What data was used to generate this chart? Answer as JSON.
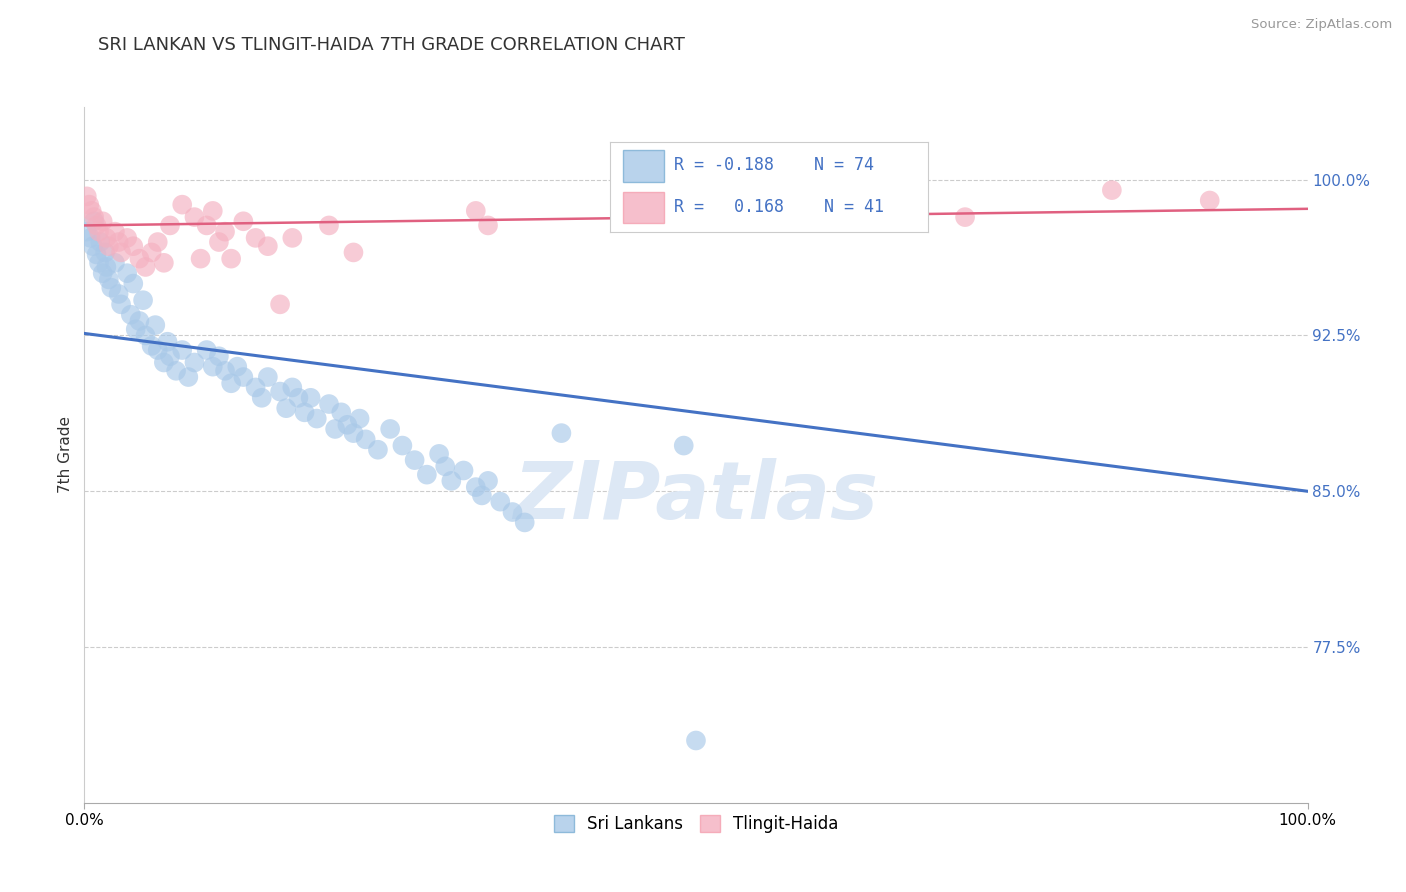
{
  "title": "SRI LANKAN VS TLINGIT-HAIDA 7TH GRADE CORRELATION CHART",
  "source": "Source: ZipAtlas.com",
  "ylabel": "7th Grade",
  "legend_label1": "Sri Lankans",
  "legend_label2": "Tlingit-Haida",
  "blue_color": "#a8c8e8",
  "pink_color": "#f4b0c0",
  "blue_line_color": "#4472c4",
  "pink_line_color": "#e06080",
  "blue_line_start_y": 0.926,
  "blue_line_end_y": 0.85,
  "pink_line_start_y": 0.978,
  "pink_line_end_y": 0.986,
  "yticks": [
    0.775,
    0.85,
    0.925,
    1.0
  ],
  "ytick_labels": [
    "77.5%",
    "85.0%",
    "92.5%",
    "100.0%"
  ],
  "y_min": 0.7,
  "y_max": 1.035,
  "x_min": 0.0,
  "x_max": 1.0,
  "blue_points": [
    [
      0.002,
      0.975
    ],
    [
      0.005,
      0.972
    ],
    [
      0.007,
      0.968
    ],
    [
      0.008,
      0.98
    ],
    [
      0.01,
      0.964
    ],
    [
      0.012,
      0.96
    ],
    [
      0.013,
      0.97
    ],
    [
      0.015,
      0.955
    ],
    [
      0.017,
      0.965
    ],
    [
      0.018,
      0.958
    ],
    [
      0.02,
      0.952
    ],
    [
      0.022,
      0.948
    ],
    [
      0.025,
      0.96
    ],
    [
      0.028,
      0.945
    ],
    [
      0.03,
      0.94
    ],
    [
      0.035,
      0.955
    ],
    [
      0.038,
      0.935
    ],
    [
      0.04,
      0.95
    ],
    [
      0.042,
      0.928
    ],
    [
      0.045,
      0.932
    ],
    [
      0.048,
      0.942
    ],
    [
      0.05,
      0.925
    ],
    [
      0.055,
      0.92
    ],
    [
      0.058,
      0.93
    ],
    [
      0.06,
      0.918
    ],
    [
      0.065,
      0.912
    ],
    [
      0.068,
      0.922
    ],
    [
      0.07,
      0.915
    ],
    [
      0.075,
      0.908
    ],
    [
      0.08,
      0.918
    ],
    [
      0.085,
      0.905
    ],
    [
      0.09,
      0.912
    ],
    [
      0.1,
      0.918
    ],
    [
      0.105,
      0.91
    ],
    [
      0.11,
      0.915
    ],
    [
      0.115,
      0.908
    ],
    [
      0.12,
      0.902
    ],
    [
      0.125,
      0.91
    ],
    [
      0.13,
      0.905
    ],
    [
      0.14,
      0.9
    ],
    [
      0.145,
      0.895
    ],
    [
      0.15,
      0.905
    ],
    [
      0.16,
      0.898
    ],
    [
      0.165,
      0.89
    ],
    [
      0.17,
      0.9
    ],
    [
      0.175,
      0.895
    ],
    [
      0.18,
      0.888
    ],
    [
      0.185,
      0.895
    ],
    [
      0.19,
      0.885
    ],
    [
      0.2,
      0.892
    ],
    [
      0.205,
      0.88
    ],
    [
      0.21,
      0.888
    ],
    [
      0.215,
      0.882
    ],
    [
      0.22,
      0.878
    ],
    [
      0.225,
      0.885
    ],
    [
      0.23,
      0.875
    ],
    [
      0.24,
      0.87
    ],
    [
      0.25,
      0.88
    ],
    [
      0.26,
      0.872
    ],
    [
      0.27,
      0.865
    ],
    [
      0.28,
      0.858
    ],
    [
      0.29,
      0.868
    ],
    [
      0.295,
      0.862
    ],
    [
      0.3,
      0.855
    ],
    [
      0.31,
      0.86
    ],
    [
      0.32,
      0.852
    ],
    [
      0.325,
      0.848
    ],
    [
      0.33,
      0.855
    ],
    [
      0.34,
      0.845
    ],
    [
      0.35,
      0.84
    ],
    [
      0.36,
      0.835
    ],
    [
      0.39,
      0.878
    ],
    [
      0.49,
      0.872
    ],
    [
      0.5,
      0.73
    ]
  ],
  "pink_points": [
    [
      0.002,
      0.992
    ],
    [
      0.004,
      0.988
    ],
    [
      0.006,
      0.985
    ],
    [
      0.008,
      0.982
    ],
    [
      0.01,
      0.978
    ],
    [
      0.012,
      0.975
    ],
    [
      0.015,
      0.98
    ],
    [
      0.018,
      0.972
    ],
    [
      0.02,
      0.968
    ],
    [
      0.025,
      0.975
    ],
    [
      0.028,
      0.97
    ],
    [
      0.03,
      0.965
    ],
    [
      0.035,
      0.972
    ],
    [
      0.04,
      0.968
    ],
    [
      0.045,
      0.962
    ],
    [
      0.05,
      0.958
    ],
    [
      0.055,
      0.965
    ],
    [
      0.06,
      0.97
    ],
    [
      0.065,
      0.96
    ],
    [
      0.07,
      0.978
    ],
    [
      0.08,
      0.988
    ],
    [
      0.09,
      0.982
    ],
    [
      0.095,
      0.962
    ],
    [
      0.1,
      0.978
    ],
    [
      0.105,
      0.985
    ],
    [
      0.11,
      0.97
    ],
    [
      0.115,
      0.975
    ],
    [
      0.12,
      0.962
    ],
    [
      0.13,
      0.98
    ],
    [
      0.14,
      0.972
    ],
    [
      0.15,
      0.968
    ],
    [
      0.16,
      0.94
    ],
    [
      0.17,
      0.972
    ],
    [
      0.2,
      0.978
    ],
    [
      0.22,
      0.965
    ],
    [
      0.32,
      0.985
    ],
    [
      0.33,
      0.978
    ],
    [
      0.68,
      0.988
    ],
    [
      0.72,
      0.982
    ],
    [
      0.84,
      0.995
    ],
    [
      0.92,
      0.99
    ]
  ]
}
